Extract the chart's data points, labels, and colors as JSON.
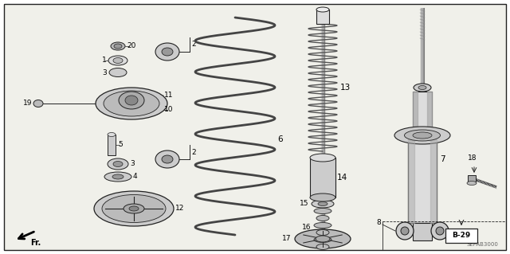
{
  "bg_color": "#ffffff",
  "diagram_bg": "#f0f0ea",
  "line_color": "#222222",
  "text_color": "#000000",
  "label_fontsize": 6.5,
  "corner_label": "SEPAB3000",
  "b29_label": "B-29",
  "figwidth": 6.4,
  "figheight": 3.19,
  "dpi": 100
}
